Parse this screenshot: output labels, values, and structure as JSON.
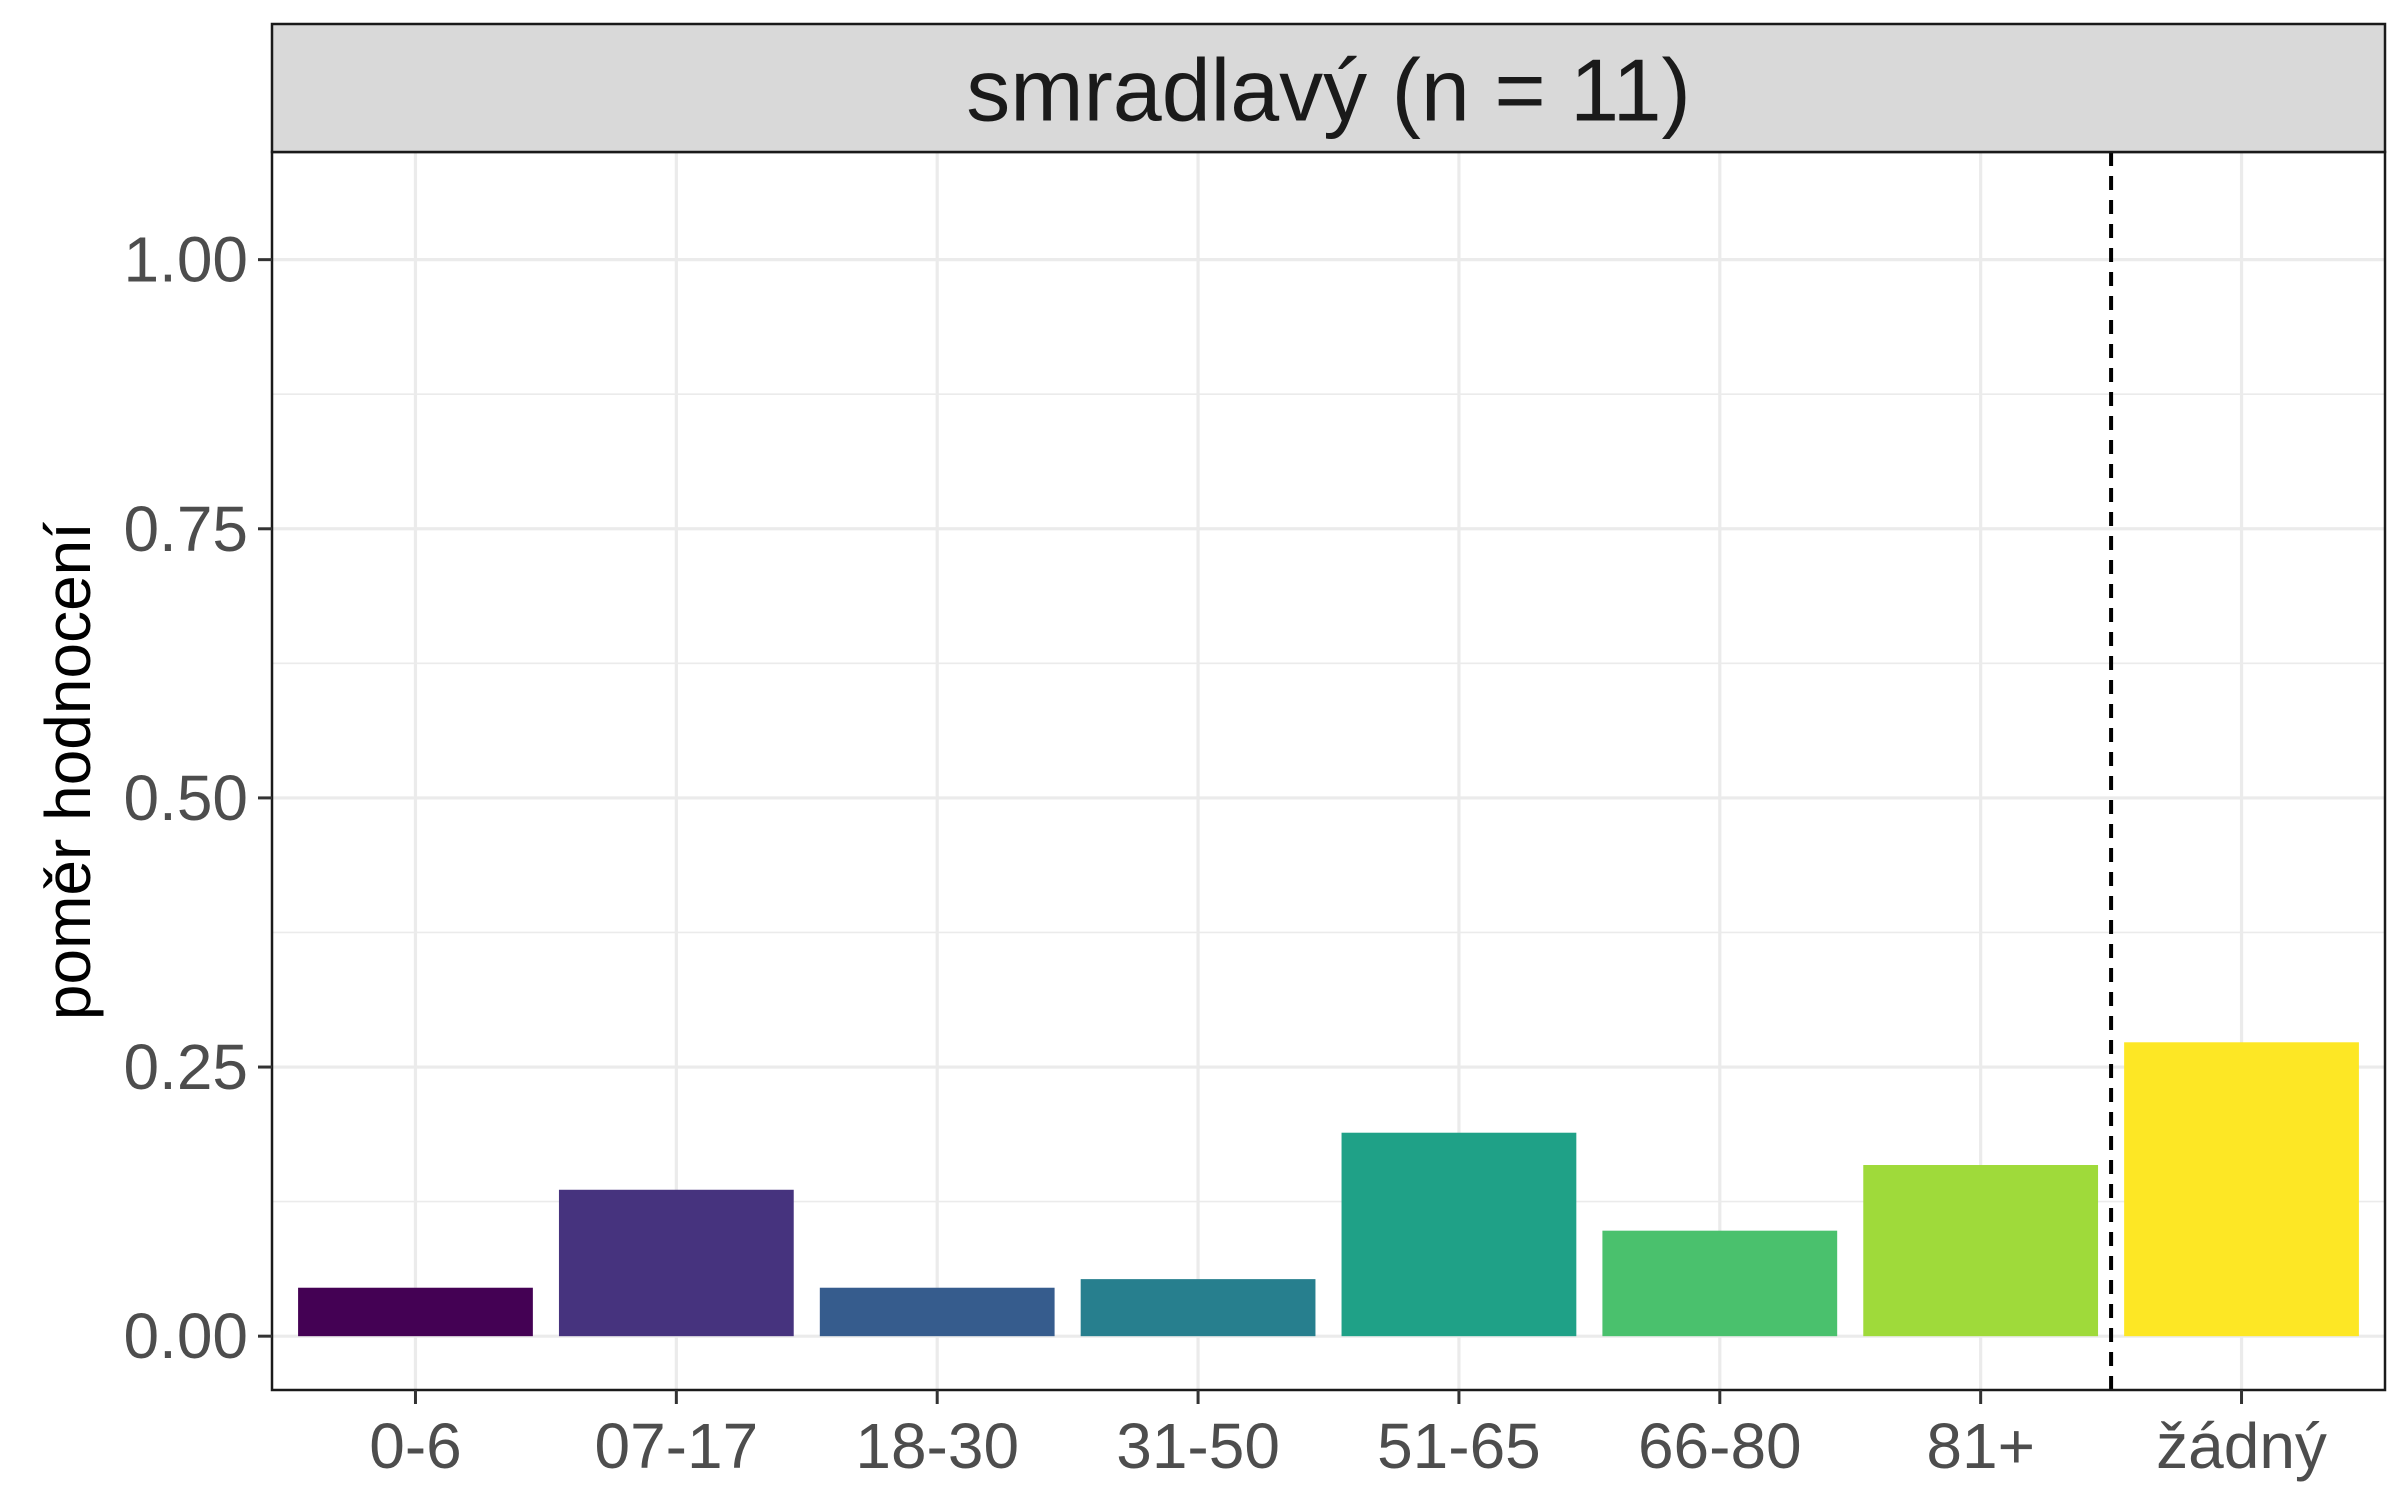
{
  "chart_data": {
    "type": "bar",
    "facet_title": "smradlavý (n = 11)",
    "ylabel": "poměr hodnocení",
    "xlabel": "",
    "categories": [
      "0-6",
      "07-17",
      "18-30",
      "31-50",
      "51-65",
      "66-80",
      "81+",
      "žádný"
    ],
    "values": [
      0.045,
      0.136,
      0.045,
      0.053,
      0.189,
      0.098,
      0.159,
      0.273
    ],
    "colors": [
      "#440154",
      "#46337E",
      "#365C8D",
      "#277F8E",
      "#1FA187",
      "#4AC16D",
      "#9FDA3A",
      "#FDE725"
    ],
    "ylim": [
      -0.05,
      1.1
    ],
    "y_ticks": [
      0.0,
      0.25,
      0.5,
      0.75,
      1.0
    ],
    "y_tick_labels": [
      "0.00",
      "0.25",
      "0.50",
      "0.75",
      "1.00"
    ],
    "reference_line": {
      "between": [
        "81+",
        "žádný"
      ],
      "style": "dashed"
    },
    "grid": true,
    "legend": "none"
  }
}
